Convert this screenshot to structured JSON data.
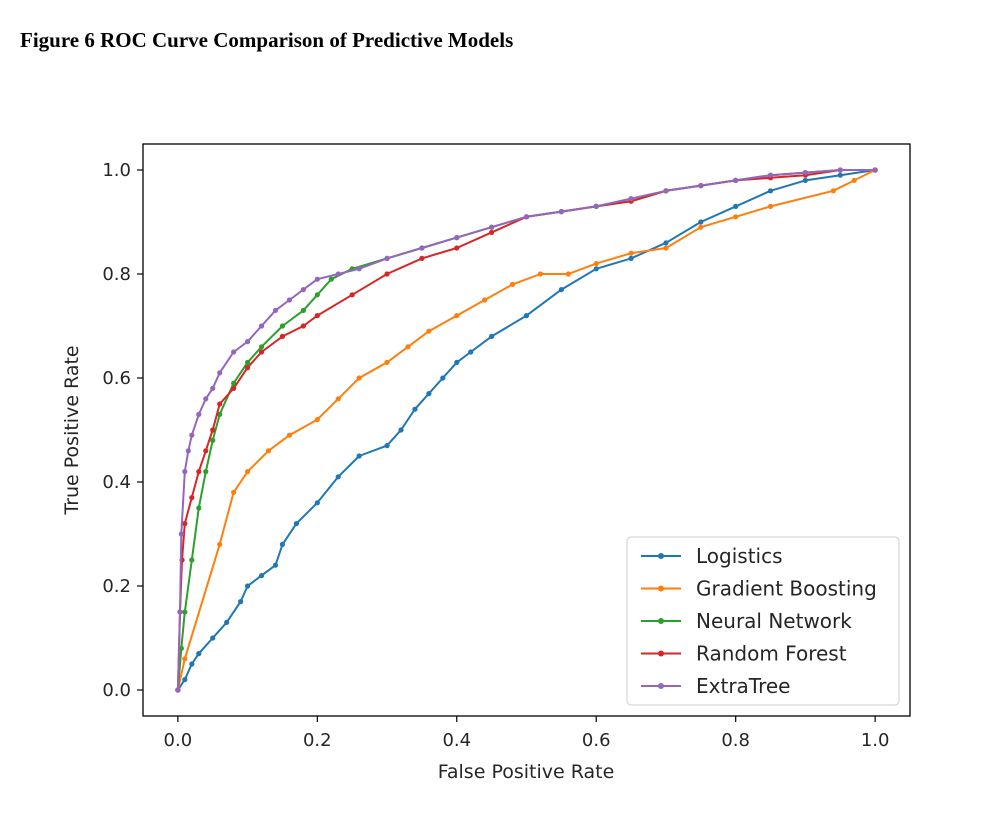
{
  "figure_title": "Figure 6 ROC Curve Comparison of Predictive Models",
  "chart_data": {
    "type": "line",
    "xlabel": "False Positive Rate",
    "ylabel": "True Positive Rate",
    "xlim": [
      -0.05,
      1.05
    ],
    "ylim": [
      -0.05,
      1.05
    ],
    "xticks": [
      "0.0",
      "0.2",
      "0.4",
      "0.6",
      "0.8",
      "1.0"
    ],
    "yticks": [
      "0.0",
      "0.2",
      "0.4",
      "0.6",
      "0.8",
      "1.0"
    ],
    "grid": false,
    "legend_position": "lower-right",
    "series": [
      {
        "name": "Logistics",
        "color": "#1f77b4",
        "x": [
          0,
          0.01,
          0.02,
          0.03,
          0.05,
          0.07,
          0.09,
          0.1,
          0.12,
          0.14,
          0.15,
          0.17,
          0.2,
          0.23,
          0.26,
          0.3,
          0.32,
          0.34,
          0.36,
          0.38,
          0.4,
          0.42,
          0.45,
          0.5,
          0.55,
          0.6,
          0.65,
          0.7,
          0.75,
          0.8,
          0.85,
          0.9,
          0.95,
          1.0
        ],
        "y": [
          0,
          0.02,
          0.05,
          0.07,
          0.1,
          0.13,
          0.17,
          0.2,
          0.22,
          0.24,
          0.28,
          0.32,
          0.36,
          0.41,
          0.45,
          0.47,
          0.5,
          0.54,
          0.57,
          0.6,
          0.63,
          0.65,
          0.68,
          0.72,
          0.77,
          0.81,
          0.83,
          0.86,
          0.9,
          0.93,
          0.96,
          0.98,
          0.99,
          1.0
        ]
      },
      {
        "name": "Gradient Boosting",
        "color": "#ff7f0e",
        "x": [
          0,
          0.01,
          0.06,
          0.08,
          0.1,
          0.13,
          0.16,
          0.2,
          0.23,
          0.26,
          0.3,
          0.33,
          0.36,
          0.4,
          0.44,
          0.48,
          0.52,
          0.56,
          0.6,
          0.65,
          0.7,
          0.75,
          0.8,
          0.85,
          0.94,
          0.97,
          1.0
        ],
        "y": [
          0,
          0.06,
          0.28,
          0.38,
          0.42,
          0.46,
          0.49,
          0.52,
          0.56,
          0.6,
          0.63,
          0.66,
          0.69,
          0.72,
          0.75,
          0.78,
          0.8,
          0.8,
          0.82,
          0.84,
          0.85,
          0.89,
          0.91,
          0.93,
          0.96,
          0.98,
          1.0
        ]
      },
      {
        "name": "Neural Network",
        "color": "#2ca02c",
        "x": [
          0,
          0.005,
          0.01,
          0.02,
          0.03,
          0.04,
          0.05,
          0.06,
          0.08,
          0.1,
          0.12,
          0.15,
          0.18,
          0.2,
          0.22,
          0.25,
          0.3,
          0.35,
          0.4,
          0.45,
          0.5,
          0.55,
          0.6,
          0.65,
          0.7,
          0.75,
          0.8,
          0.85,
          0.9,
          0.95,
          1.0
        ],
        "y": [
          0,
          0.08,
          0.15,
          0.25,
          0.35,
          0.42,
          0.48,
          0.53,
          0.59,
          0.63,
          0.66,
          0.7,
          0.73,
          0.76,
          0.79,
          0.81,
          0.83,
          0.85,
          0.87,
          0.89,
          0.91,
          0.92,
          0.93,
          0.94,
          0.96,
          0.97,
          0.98,
          0.99,
          0.995,
          1.0,
          1.0
        ]
      },
      {
        "name": "Random Forest",
        "color": "#d62728",
        "x": [
          0,
          0.003,
          0.006,
          0.01,
          0.02,
          0.03,
          0.04,
          0.05,
          0.06,
          0.08,
          0.1,
          0.12,
          0.15,
          0.18,
          0.2,
          0.25,
          0.3,
          0.35,
          0.4,
          0.45,
          0.5,
          0.55,
          0.6,
          0.65,
          0.7,
          0.75,
          0.8,
          0.85,
          0.9,
          0.95,
          1.0
        ],
        "y": [
          0,
          0.15,
          0.25,
          0.32,
          0.37,
          0.42,
          0.46,
          0.5,
          0.55,
          0.58,
          0.62,
          0.65,
          0.68,
          0.7,
          0.72,
          0.76,
          0.8,
          0.83,
          0.85,
          0.88,
          0.91,
          0.92,
          0.93,
          0.94,
          0.96,
          0.97,
          0.98,
          0.985,
          0.99,
          1.0,
          1.0
        ]
      },
      {
        "name": "ExtraTree",
        "color": "#9467bd",
        "x": [
          0,
          0.003,
          0.005,
          0.01,
          0.015,
          0.02,
          0.03,
          0.04,
          0.05,
          0.06,
          0.08,
          0.1,
          0.12,
          0.14,
          0.16,
          0.18,
          0.2,
          0.23,
          0.26,
          0.3,
          0.35,
          0.4,
          0.45,
          0.5,
          0.55,
          0.6,
          0.65,
          0.7,
          0.75,
          0.8,
          0.85,
          0.9,
          0.95,
          1.0
        ],
        "y": [
          0,
          0.15,
          0.3,
          0.42,
          0.46,
          0.49,
          0.53,
          0.56,
          0.58,
          0.61,
          0.65,
          0.67,
          0.7,
          0.73,
          0.75,
          0.77,
          0.79,
          0.8,
          0.81,
          0.83,
          0.85,
          0.87,
          0.89,
          0.91,
          0.92,
          0.93,
          0.945,
          0.96,
          0.97,
          0.98,
          0.99,
          0.995,
          1.0,
          1.0
        ]
      }
    ]
  }
}
